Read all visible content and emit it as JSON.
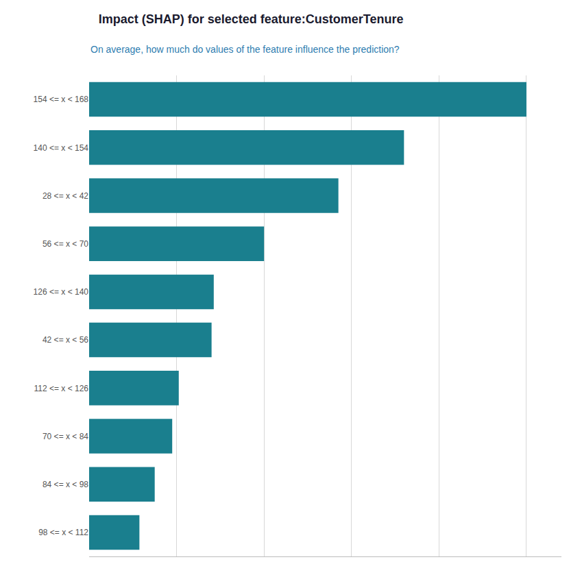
{
  "chart_data": {
    "type": "bar",
    "title": "Impact (SHAP) for selected feature:CustomerTenure",
    "subtitle": "On average, how much do values of the feature influence the prediction?",
    "orientation": "horizontal",
    "categories": [
      "154 <= x < 168",
      "140 <= x < 154",
      "28 <= x < 42",
      "56 <= x < 70",
      "126 <= x < 140",
      "42 <= x < 56",
      "112 <= x < 126",
      "70 <= x < 84",
      "84 <= x < 98",
      "98 <= x < 112"
    ],
    "values": [
      1.0,
      0.72,
      0.57,
      0.4,
      0.285,
      0.28,
      0.205,
      0.19,
      0.15,
      0.115
    ],
    "color": "#1a7f8e",
    "xlim": [
      0,
      1.08
    ],
    "xticks": [
      0,
      0.2,
      0.4,
      0.6,
      0.8,
      1.0
    ],
    "grid": true,
    "tick_labels": "y"
  }
}
